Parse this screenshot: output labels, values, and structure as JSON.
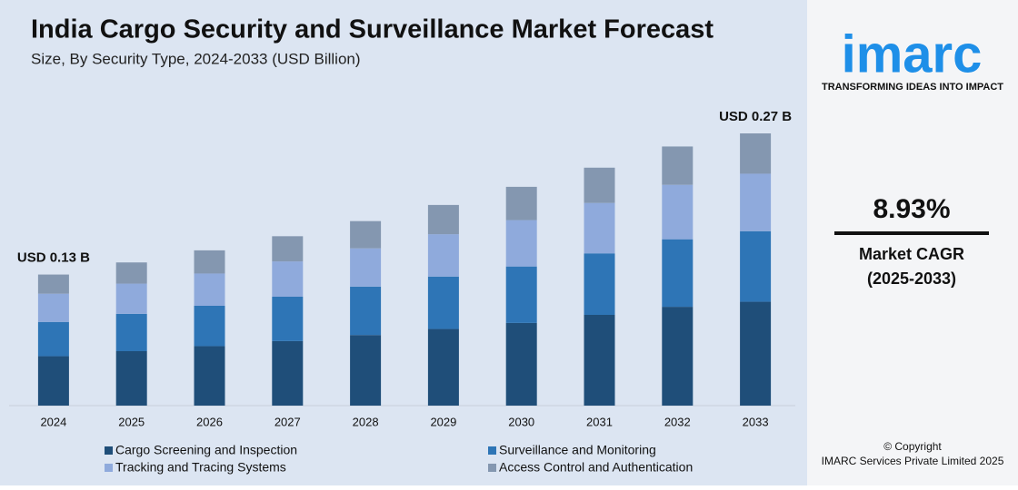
{
  "chart_data": {
    "type": "stacked-bar",
    "title": "India Cargo Security and Surveillance Market Forecast",
    "subtitle": "Size, By Security Type, 2024-2033 (USD Billion)",
    "annotations": [
      "USD 0.13 B",
      "USD 0.27 B"
    ],
    "categories": [
      "2024",
      "2025",
      "2026",
      "2027",
      "2028",
      "2029",
      "2030",
      "2031",
      "2032",
      "2033"
    ],
    "series": [
      {
        "name": "Cargo Screening and Inspection",
        "color": "#1f4e79",
        "values": [
          0.049,
          0.054,
          0.059,
          0.064,
          0.07,
          0.076,
          0.082,
          0.09,
          0.098,
          0.103
        ]
      },
      {
        "name": "Surveillance and Monitoring",
        "color": "#2e75b6",
        "values": [
          0.034,
          0.037,
          0.04,
          0.044,
          0.048,
          0.052,
          0.056,
          0.061,
          0.067,
          0.07
        ]
      },
      {
        "name": "Tracking and Tracing Systems",
        "color": "#8faadc",
        "values": [
          0.028,
          0.03,
          0.032,
          0.035,
          0.038,
          0.042,
          0.046,
          0.05,
          0.054,
          0.057
        ]
      },
      {
        "name": "Access Control and Authentication",
        "color": "#8497b0",
        "values": [
          0.019,
          0.021,
          0.023,
          0.025,
          0.027,
          0.029,
          0.033,
          0.035,
          0.038,
          0.04
        ]
      }
    ]
  },
  "sidebar": {
    "logo": "imarc",
    "tagline": "TRANSFORMING IDEAS INTO IMPACT",
    "cagr": "8.93%",
    "cagr_label": "Market CAGR",
    "cagr_period": "(2025-2033)",
    "copyright": "© Copyright",
    "company": "IMARC Services Private Limited 2025"
  }
}
